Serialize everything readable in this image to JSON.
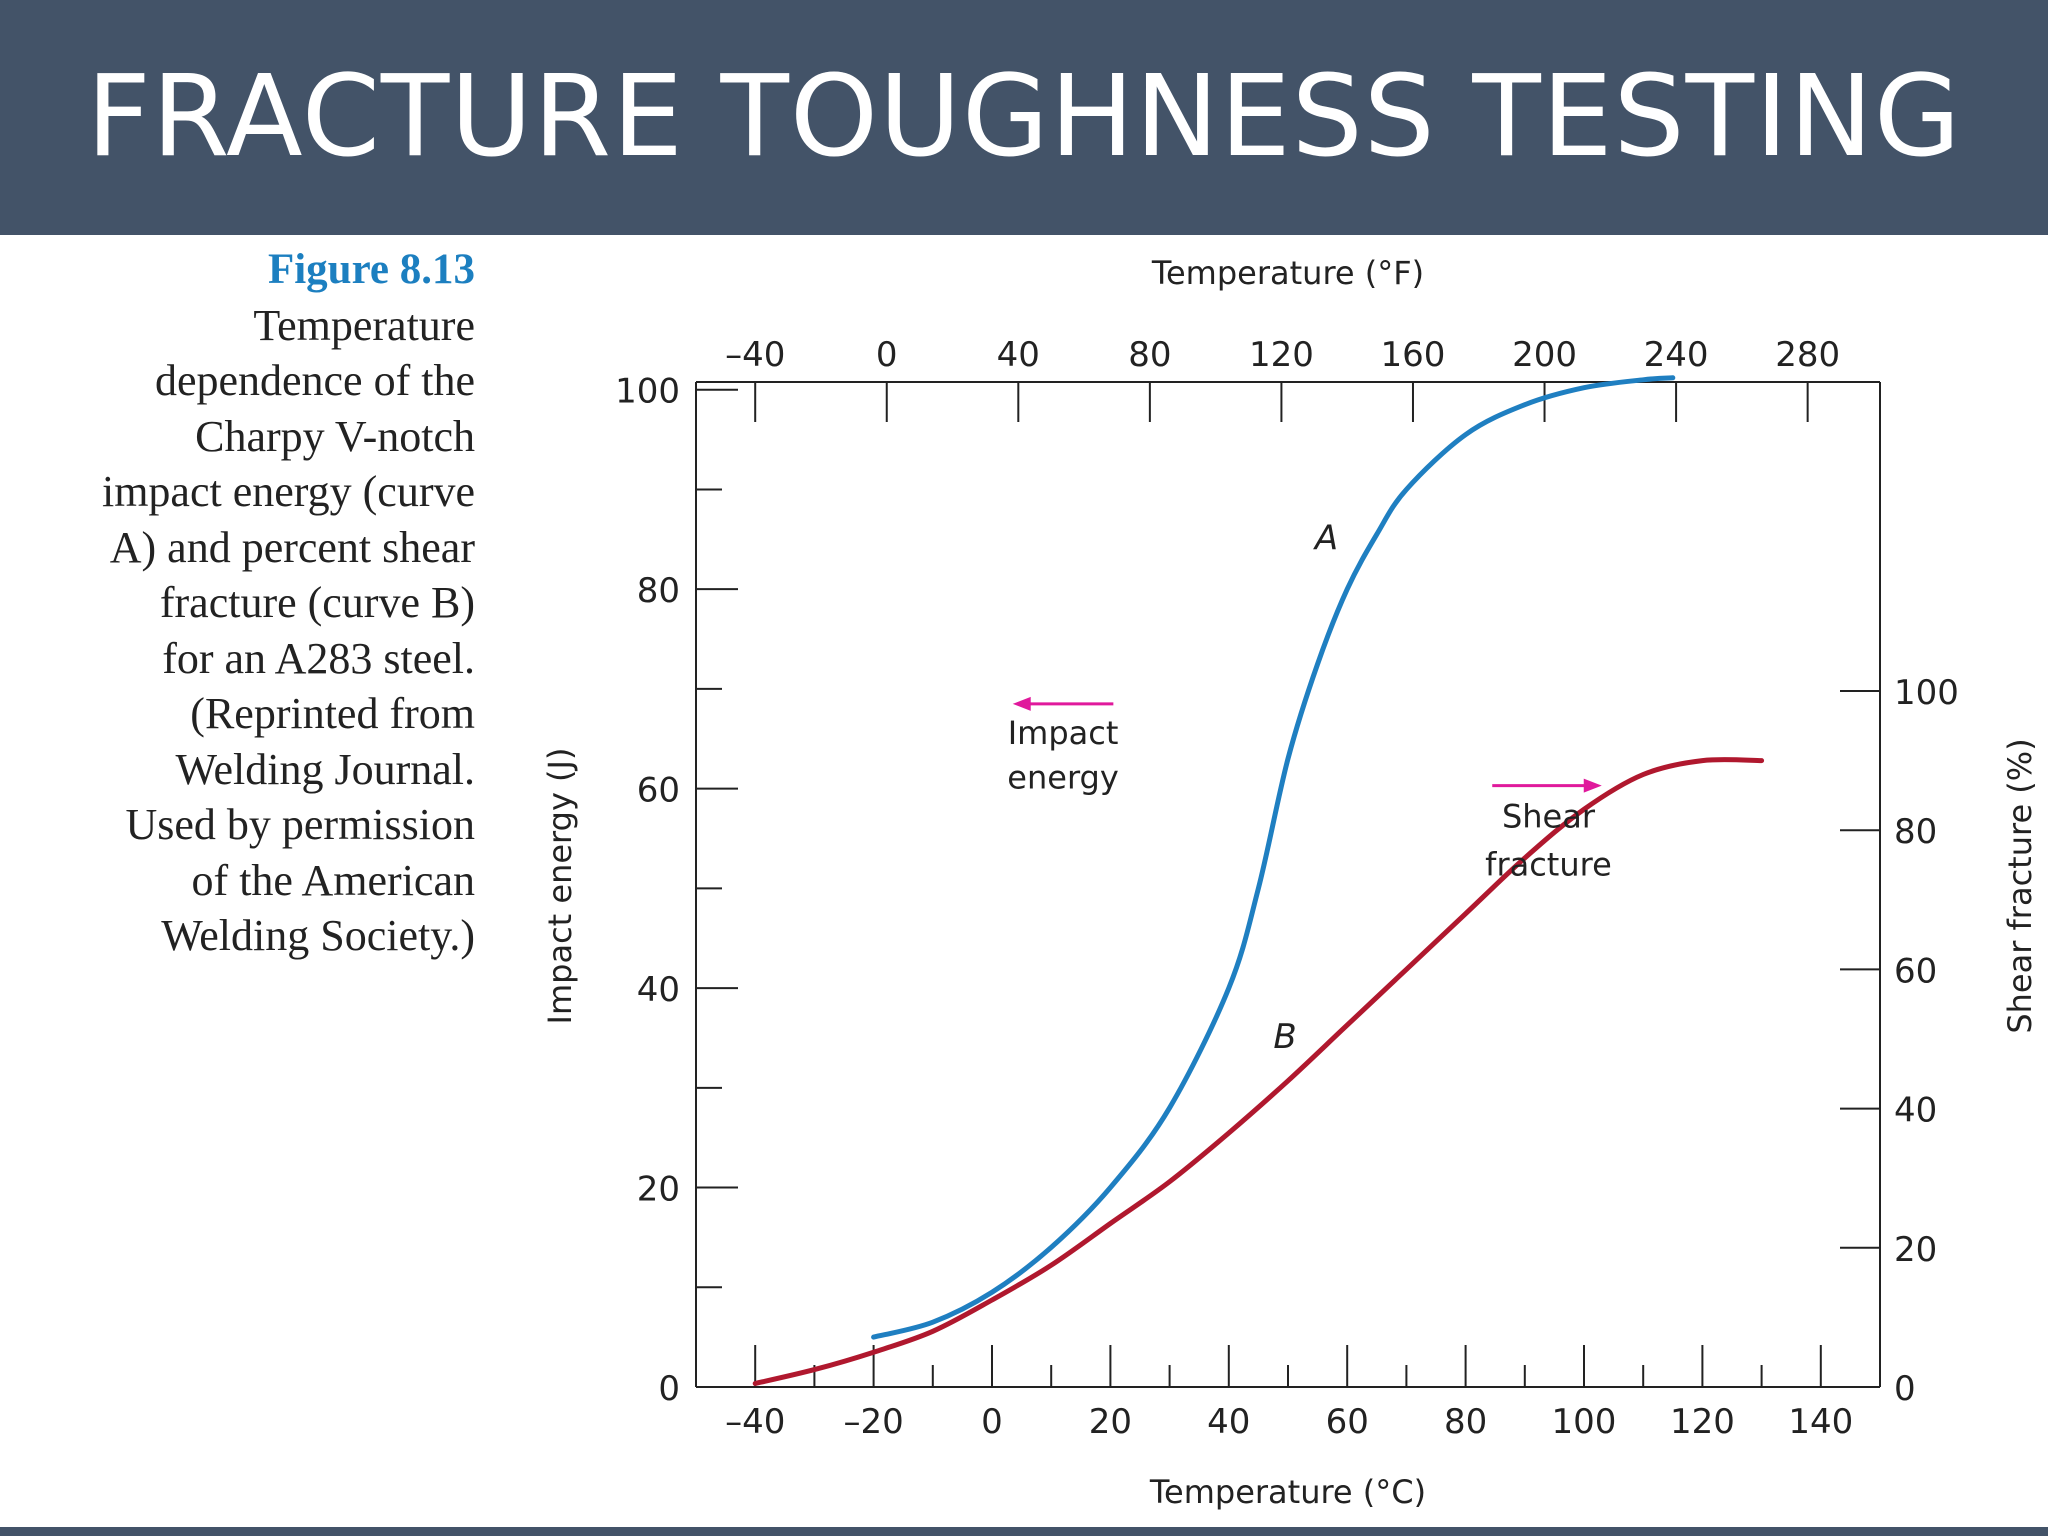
{
  "slide": {
    "title": "FRACTURE TOUGHNESS TESTING"
  },
  "caption": {
    "figure_label": "Figure 8.13",
    "lines": [
      "Temperature",
      "dependence of the",
      "Charpy V-notch",
      "impact energy (curve",
      "A) and percent shear",
      "fracture (curve B)",
      "for an A283 steel.",
      "(Reprinted from",
      "Welding Journal.",
      "Used by permission",
      "of the American",
      "Welding Society.)"
    ]
  },
  "chart_data": {
    "type": "line",
    "xlabel": "Temperature (°C)",
    "x2label": "Temperature (°F)",
    "ylabel": "Impact energy (J)",
    "y2label": "Shear fracture (%)",
    "xlim": [
      -50,
      150
    ],
    "x_ticks": [
      -40,
      -20,
      0,
      20,
      40,
      60,
      80,
      100,
      120,
      140
    ],
    "x_tick_labels": [
      "–40",
      "–20",
      "0",
      "20",
      "40",
      "60",
      "80",
      "100",
      "120",
      "140"
    ],
    "x2lim": [
      -58,
      302
    ],
    "x2_ticks": [
      -40,
      0,
      40,
      80,
      120,
      160,
      200,
      240,
      280
    ],
    "x2_tick_labels": [
      "–40",
      "0",
      "40",
      "80",
      "120",
      "160",
      "200",
      "240",
      "280"
    ],
    "ylim": [
      0,
      110
    ],
    "y_ticks": [
      0,
      20,
      40,
      60,
      80,
      100
    ],
    "y_tick_labels": [
      "0",
      "20",
      "40",
      "60",
      "80",
      "100"
    ],
    "y2lim": [
      0,
      100
    ],
    "y2_ticks": [
      0,
      20,
      40,
      60,
      80,
      100
    ],
    "y2_tick_labels": [
      "0",
      "20",
      "40",
      "60",
      "80",
      "100"
    ],
    "grid": false,
    "series": [
      {
        "name": "A",
        "axis": "left",
        "color": "#1f7fc1",
        "x": [
          -20,
          -10,
          0,
          10,
          20,
          30,
          40,
          45,
          50,
          55,
          60,
          65,
          70,
          80,
          90,
          100,
          110,
          115
        ],
        "y": [
          5,
          6.5,
          9.5,
          14,
          20,
          28,
          40,
          50,
          63,
          72.5,
          80,
          85.5,
          90,
          95.5,
          98.5,
          100.2,
          101,
          101.2
        ]
      },
      {
        "name": "B",
        "axis": "right",
        "color": "#b0182e",
        "x": [
          -40,
          -30,
          -20,
          -10,
          0,
          10,
          20,
          30,
          40,
          50,
          60,
          70,
          80,
          90,
          100,
          110,
          120,
          130
        ],
        "y": [
          0.5,
          2.5,
          5,
          8,
          12.5,
          17.5,
          23.5,
          29.5,
          36.5,
          44,
          52,
          60,
          68,
          76,
          83,
          88,
          90,
          90
        ]
      }
    ],
    "annotations": [
      {
        "text": "A"
      },
      {
        "text": "B"
      },
      {
        "text": "Impact energy",
        "lines": [
          "Impact",
          "energy"
        ],
        "arrow": "left",
        "color": "#e0199c"
      },
      {
        "text": "Shear fracture",
        "lines": [
          "Shear",
          "fracture"
        ],
        "arrow": "right",
        "color": "#e0199c"
      }
    ]
  }
}
